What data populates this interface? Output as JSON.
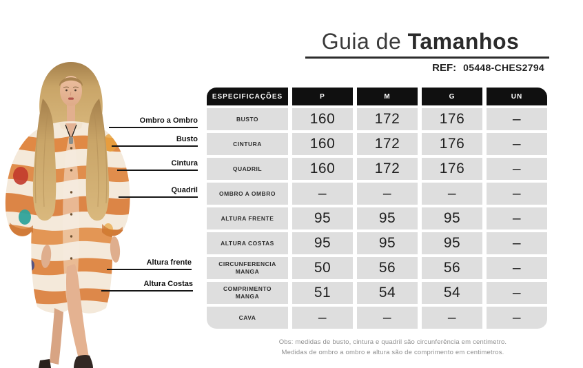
{
  "header": {
    "title_light": "Guia de ",
    "title_bold": "Tamanhos",
    "ref_label": "REF:",
    "ref_value": "05448-CHES2794"
  },
  "measure_labels": {
    "ombro": "Ombro a Ombro",
    "busto": "Busto",
    "cintura": "Cintura",
    "quadril": "Quadril",
    "altura_frente": "Altura frente",
    "altura_costas": "Altura Costas"
  },
  "table": {
    "columns": [
      "ESPECIFICAÇÕES",
      "P",
      "M",
      "G",
      "UN"
    ],
    "rows": [
      {
        "label": "BUSTO",
        "values": [
          "160",
          "172",
          "176",
          "–"
        ]
      },
      {
        "label": "CINTURA",
        "values": [
          "160",
          "172",
          "176",
          "–"
        ]
      },
      {
        "label": "QUADRIL",
        "values": [
          "160",
          "172",
          "176",
          "–"
        ]
      },
      {
        "label": "OMBRO A OMBRO",
        "values": [
          "–",
          "–",
          "–",
          "–"
        ]
      },
      {
        "label": "ALTURA FRENTE",
        "values": [
          "95",
          "95",
          "95",
          "–"
        ]
      },
      {
        "label": "ALTURA COSTAS",
        "values": [
          "95",
          "95",
          "95",
          "–"
        ]
      },
      {
        "label": "CIRCUNFERENCIA MANGA",
        "values": [
          "50",
          "56",
          "56",
          "–"
        ]
      },
      {
        "label": "COMPRIMENTO MANGA",
        "values": [
          "51",
          "54",
          "54",
          "–"
        ]
      },
      {
        "label": "CAVA",
        "values": [
          "–",
          "–",
          "–",
          "–"
        ]
      }
    ]
  },
  "notes": [
    "Obs: medidas de busto, cintura e quadril são circunferência em centimetro.",
    "Medidas de ombro a ombro e altura são de comprimento em centimetros."
  ],
  "colors": {
    "table_header_bg": "#101010",
    "table_cell_bg": "#dedede",
    "accent_orange": "#dd8038",
    "note_gray": "#8f8f8f"
  }
}
